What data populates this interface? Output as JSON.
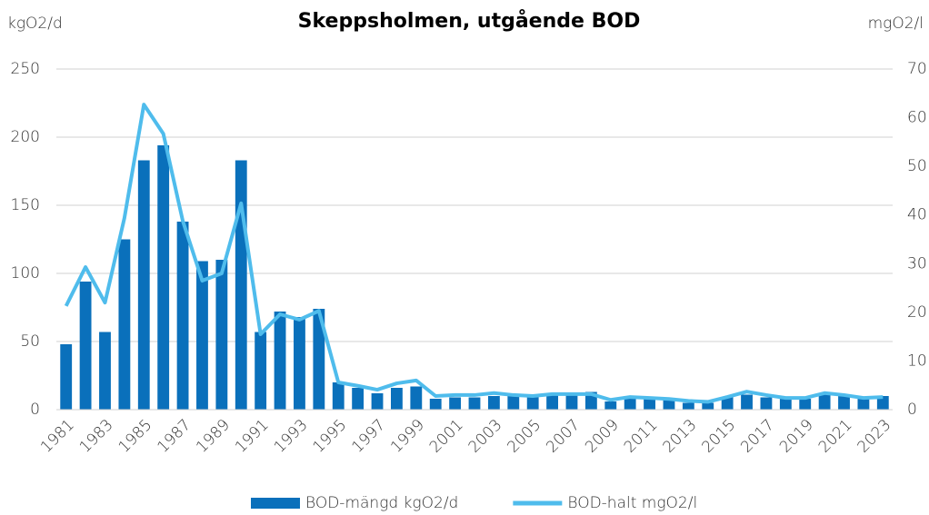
{
  "chart_data": {
    "type": "bar-line",
    "title": "Skeppsholmen, utgående BOD",
    "y_label": "kgO2/d",
    "y2_label": "mgO2/l",
    "categories": [
      "1981",
      null,
      "1983",
      null,
      "1985",
      null,
      "1987",
      null,
      "1989",
      null,
      "1991",
      null,
      "1993",
      null,
      "1995",
      null,
      "1997",
      null,
      "1999",
      null,
      "2001",
      null,
      "2003",
      null,
      "2005",
      null,
      "2007",
      null,
      "2009",
      null,
      "2011",
      null,
      "2013",
      null,
      "2015",
      null,
      "2017",
      null,
      "2019",
      null,
      "2021",
      null,
      "2023"
    ],
    "series": [
      {
        "name": "BOD-mängd kgO2/d",
        "type": "bar",
        "color": "#0a70bb",
        "values": [
          48,
          94,
          57,
          125,
          183,
          194,
          138,
          109,
          110,
          183,
          57,
          72,
          68,
          74,
          20,
          16,
          12,
          16,
          17,
          8,
          9,
          9,
          10,
          10,
          10,
          11,
          11,
          13,
          6,
          8,
          8,
          7,
          5,
          5,
          9,
          11,
          9,
          8,
          8,
          11,
          10,
          8,
          10
        ]
      },
      {
        "name": "BOD-halt mgO2/l",
        "type": "line",
        "axis": "y2",
        "color": "#4fbcec",
        "values": [
          21.3,
          29.3,
          22,
          39.4,
          62.7,
          56.7,
          38.8,
          26.5,
          28,
          42.4,
          15.5,
          19.6,
          18.5,
          20.3,
          5.6,
          4.9,
          4.1,
          5.4,
          6,
          2.8,
          3,
          3,
          3.4,
          3,
          2.8,
          3.2,
          3.2,
          3.2,
          2,
          2.6,
          2.4,
          2.2,
          1.8,
          1.6,
          2.6,
          3.7,
          3,
          2.4,
          2.4,
          3.4,
          3,
          2.4,
          2.6
        ]
      }
    ],
    "ylim": [
      0,
      250
    ],
    "yticks": [
      0,
      50,
      100,
      150,
      200,
      250
    ],
    "y2lim": [
      0,
      70
    ],
    "y2ticks": [
      0,
      10,
      20,
      30,
      40,
      50,
      60,
      70
    ],
    "grid": true,
    "legend": "bottom"
  }
}
